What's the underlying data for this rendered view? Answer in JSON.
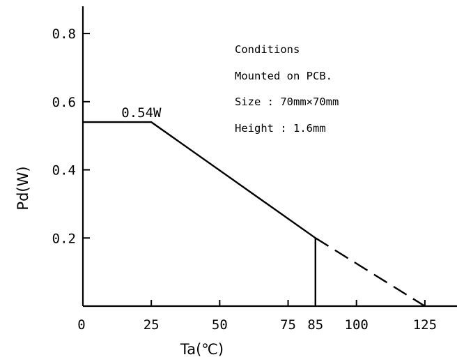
{
  "chart_data": {
    "type": "line",
    "xlabel": "Ta(℃)",
    "ylabel": "Pd(W)",
    "xlim": [
      0,
      137
    ],
    "ylim": [
      0,
      0.88
    ],
    "x_ticks": [
      0,
      25,
      50,
      75,
      85,
      100,
      125
    ],
    "y_ticks": [
      0.2,
      0.4,
      0.6,
      0.8
    ],
    "x_tick_labels": [
      "0",
      "25",
      "50",
      "75",
      "85",
      "100",
      "125"
    ],
    "y_tick_labels": [
      "0.2",
      "0.4",
      "0.6",
      "0.8"
    ],
    "series": [
      {
        "style": "solid",
        "x": [
          0,
          25,
          85
        ],
        "y": [
          0.54,
          0.54,
          0.2
        ]
      },
      {
        "style": "dashed",
        "x": [
          85,
          125
        ],
        "y": [
          0.2,
          0
        ]
      }
    ],
    "vertical_marker": {
      "x": 85,
      "y_from": 0,
      "y_to": 0.2
    },
    "annotations": [
      {
        "text": "0.54W",
        "x": 10,
        "y": 0.555
      }
    ],
    "conditions": [
      "Conditions",
      "Mounted on PCB.",
      "Size : 70mm×70mm",
      "Height : 1.6mm"
    ],
    "grid": false
  }
}
